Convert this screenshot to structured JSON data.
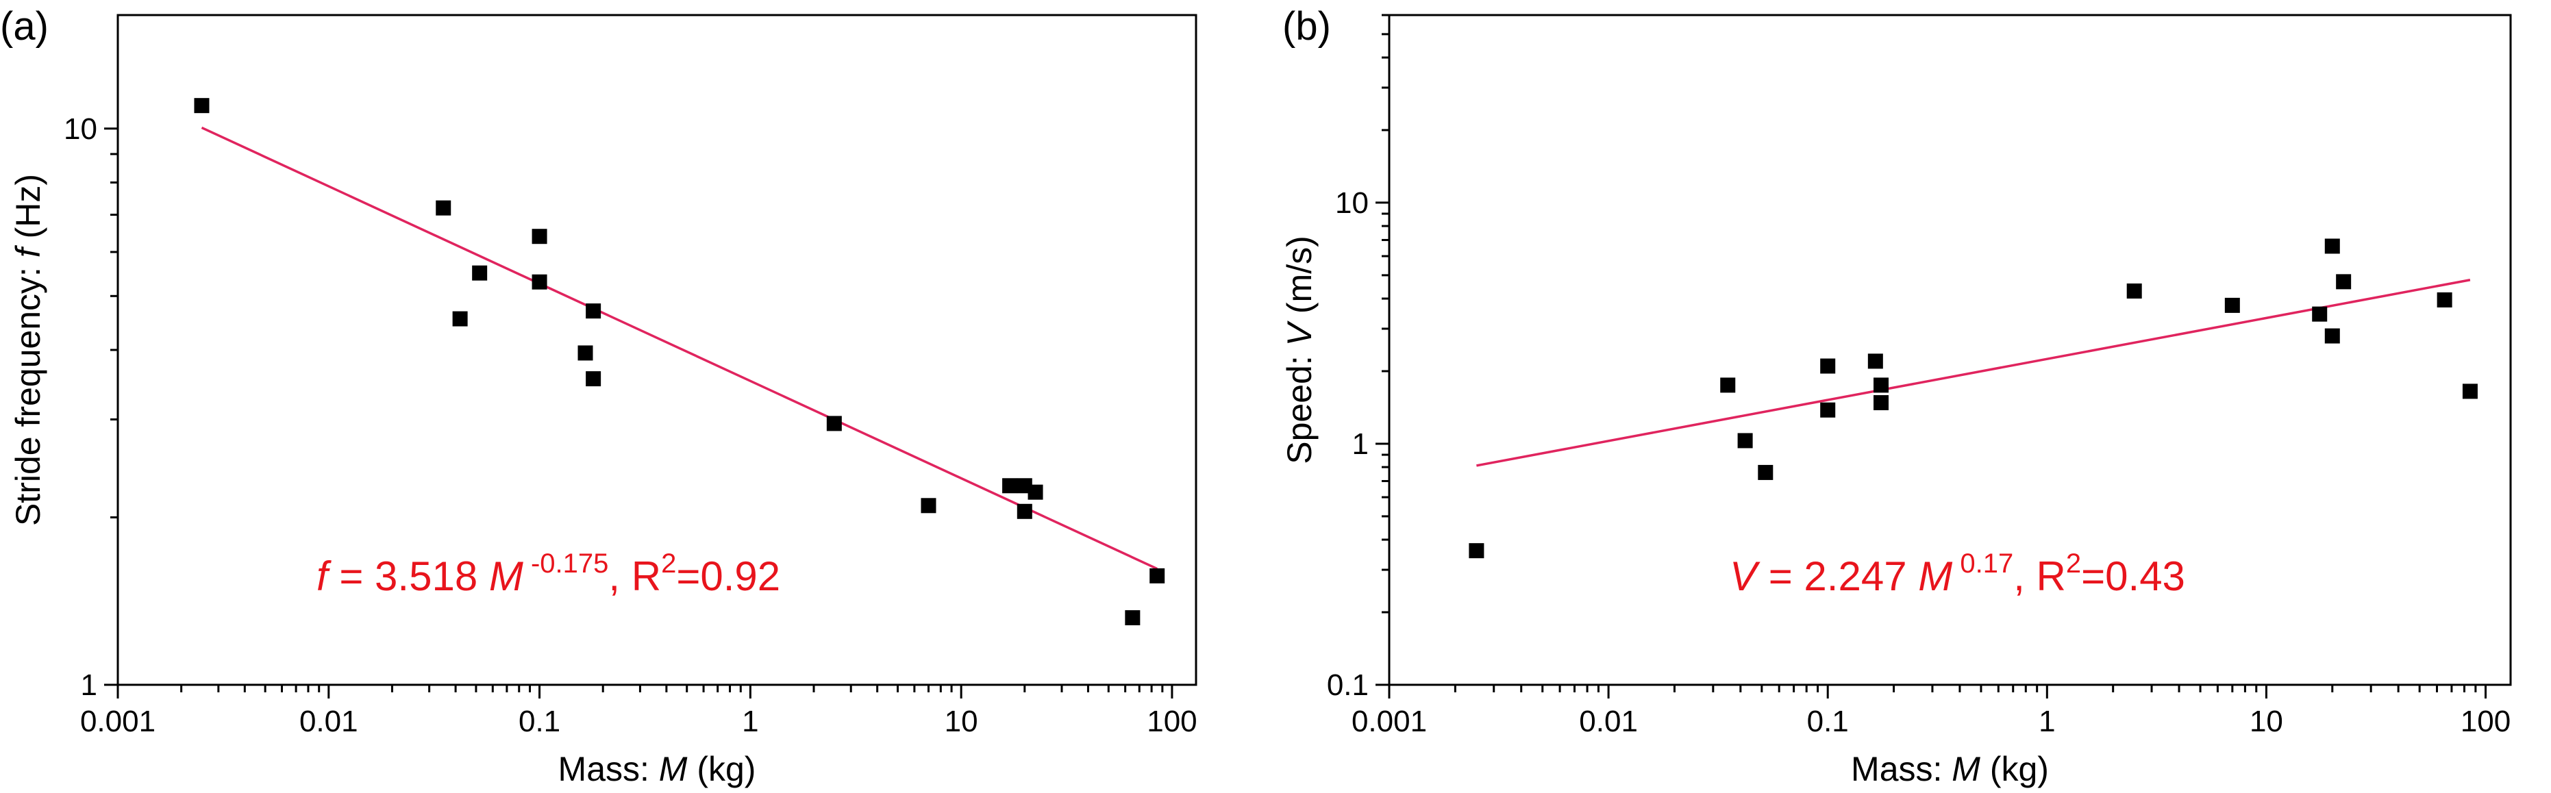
{
  "colors": {
    "fit_line": "#e0245e",
    "equation": "#e8141c",
    "marker": "#000000",
    "axis": "#000000"
  },
  "chart_data": [
    {
      "type": "scatter",
      "panel_label": "(a)",
      "x_scale": "log",
      "y_scale": "log",
      "xlim": [
        0.001,
        130
      ],
      "ylim": [
        1,
        16
      ],
      "x_ticks": [
        {
          "value": 0.001,
          "label": "0.001"
        },
        {
          "value": 0.01,
          "label": "0.01"
        },
        {
          "value": 0.1,
          "label": "0.1"
        },
        {
          "value": 1,
          "label": "1"
        },
        {
          "value": 10,
          "label": "10"
        },
        {
          "value": 100,
          "label": "100"
        }
      ],
      "y_ticks": [
        {
          "value": 1,
          "label": "1"
        },
        {
          "value": 10,
          "label": "10"
        }
      ],
      "xlabel": {
        "prefix": "Mass: ",
        "var": "M",
        "unit": " (kg)"
      },
      "ylabel": {
        "prefix": "Stride frequency: ",
        "var": "f",
        "unit": " (Hz)"
      },
      "points": [
        {
          "x": 0.0025,
          "y": 11.0
        },
        {
          "x": 0.035,
          "y": 7.2
        },
        {
          "x": 0.042,
          "y": 4.55
        },
        {
          "x": 0.052,
          "y": 5.5
        },
        {
          "x": 0.1,
          "y": 6.4
        },
        {
          "x": 0.1,
          "y": 5.3
        },
        {
          "x": 0.165,
          "y": 3.95
        },
        {
          "x": 0.18,
          "y": 4.7
        },
        {
          "x": 0.18,
          "y": 3.55
        },
        {
          "x": 2.5,
          "y": 2.95
        },
        {
          "x": 7.0,
          "y": 2.1
        },
        {
          "x": 17.0,
          "y": 2.28
        },
        {
          "x": 20.0,
          "y": 2.28
        },
        {
          "x": 20.0,
          "y": 2.05
        },
        {
          "x": 22.5,
          "y": 2.22
        },
        {
          "x": 65.0,
          "y": 1.32
        },
        {
          "x": 85.0,
          "y": 1.57
        }
      ],
      "fit": {
        "coef": 3.518,
        "exponent": -0.175,
        "x_range": [
          0.0025,
          85
        ],
        "r2": 0.92
      },
      "equation": {
        "var": "f",
        "coef_text": " = 3.518 ",
        "m_var": "M",
        "exp_text": " -0.175",
        "r2_prefix": ",  R",
        "r2_sup": "2",
        "r2_value": "=0.92"
      }
    },
    {
      "type": "scatter",
      "panel_label": "(b)",
      "x_scale": "log",
      "y_scale": "log",
      "xlim": [
        0.001,
        130
      ],
      "ylim": [
        0.1,
        60
      ],
      "x_ticks": [
        {
          "value": 0.001,
          "label": "0.001"
        },
        {
          "value": 0.01,
          "label": "0.01"
        },
        {
          "value": 0.1,
          "label": "0.1"
        },
        {
          "value": 1,
          "label": "1"
        },
        {
          "value": 10,
          "label": "10"
        },
        {
          "value": 100,
          "label": "100"
        }
      ],
      "y_ticks": [
        {
          "value": 0.1,
          "label": "0.1"
        },
        {
          "value": 1,
          "label": "1"
        },
        {
          "value": 10,
          "label": "10"
        }
      ],
      "xlabel": {
        "prefix": "Mass: ",
        "var": "M",
        "unit": " (kg)"
      },
      "ylabel": {
        "prefix": "Speed: ",
        "var": "V",
        "unit": " (m/s)"
      },
      "points": [
        {
          "x": 0.0025,
          "y": 0.36
        },
        {
          "x": 0.035,
          "y": 1.75
        },
        {
          "x": 0.042,
          "y": 1.03
        },
        {
          "x": 0.052,
          "y": 0.76
        },
        {
          "x": 0.1,
          "y": 2.1
        },
        {
          "x": 0.1,
          "y": 1.38
        },
        {
          "x": 0.165,
          "y": 2.2
        },
        {
          "x": 0.175,
          "y": 1.75
        },
        {
          "x": 0.175,
          "y": 1.48
        },
        {
          "x": 2.5,
          "y": 4.3
        },
        {
          "x": 7.0,
          "y": 3.75
        },
        {
          "x": 17.5,
          "y": 3.45
        },
        {
          "x": 20.0,
          "y": 6.6
        },
        {
          "x": 20.0,
          "y": 2.8
        },
        {
          "x": 22.5,
          "y": 4.7
        },
        {
          "x": 65.0,
          "y": 3.95
        },
        {
          "x": 85.0,
          "y": 1.65
        }
      ],
      "fit": {
        "coef": 2.247,
        "exponent": 0.17,
        "x_range": [
          0.0025,
          85
        ],
        "r2": 0.43
      },
      "equation": {
        "var": "V",
        "coef_text": " = 2.247 ",
        "m_var": "M",
        "exp_text": " 0.17",
        "r2_prefix": ",  R",
        "r2_sup": "2",
        "r2_value": "=0.43"
      }
    }
  ]
}
